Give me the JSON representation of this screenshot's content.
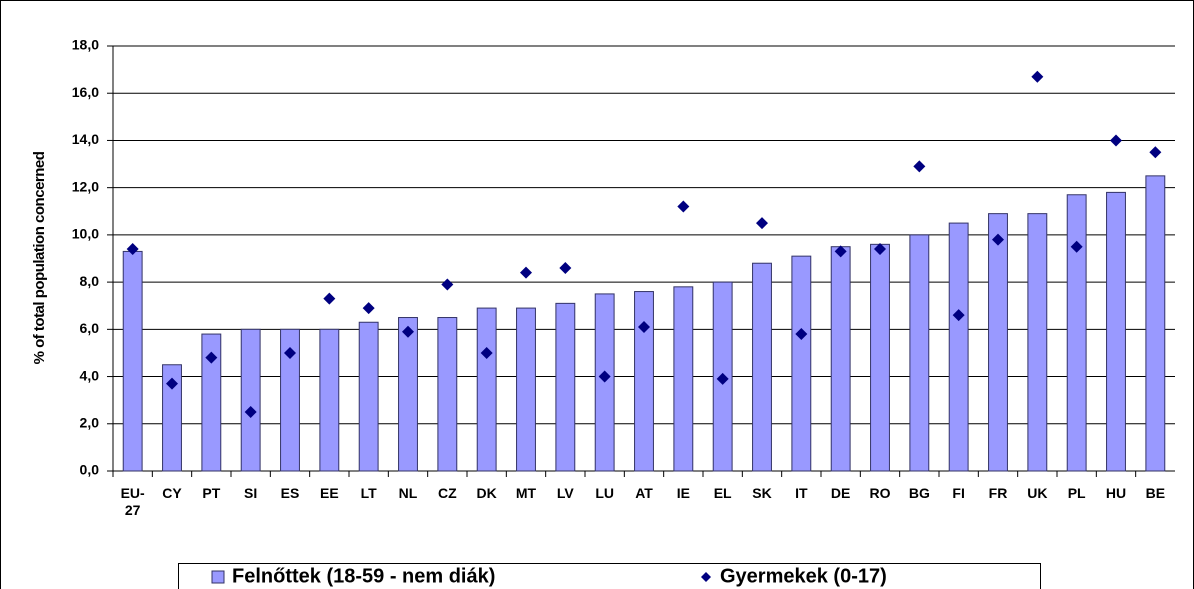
{
  "chart_data": {
    "type": "bar",
    "ylabel": "% of total population concerned",
    "categories": [
      "EU-27",
      "CY",
      "PT",
      "SI",
      "ES",
      "EE",
      "LT",
      "NL",
      "CZ",
      "DK",
      "MT",
      "LV",
      "LU",
      "AT",
      "IE",
      "EL",
      "SK",
      "IT",
      "DE",
      "RO",
      "BG",
      "FI",
      "FR",
      "UK",
      "PL",
      "HU",
      "BE"
    ],
    "series": [
      {
        "name": "Felnőttek (18-59 - nem diák)",
        "color": "#9999ff",
        "marker": "bar",
        "values": [
          9.3,
          4.5,
          5.8,
          6.0,
          6.0,
          6.0,
          6.3,
          6.5,
          6.5,
          6.9,
          6.9,
          7.1,
          7.5,
          7.6,
          7.8,
          8.0,
          8.8,
          9.1,
          9.5,
          9.6,
          10.0,
          10.5,
          10.9,
          10.9,
          11.7,
          11.8,
          12.5
        ]
      },
      {
        "name": "Gyermekek (0-17)",
        "color": "#000080",
        "marker": "diamond",
        "values": [
          9.4,
          3.7,
          4.8,
          2.5,
          5.0,
          7.3,
          6.9,
          5.9,
          7.9,
          5.0,
          8.4,
          8.6,
          4.0,
          6.1,
          11.2,
          3.9,
          10.5,
          5.8,
          9.3,
          9.4,
          12.9,
          6.6,
          9.8,
          16.7,
          9.5,
          14.0,
          13.5
        ]
      }
    ],
    "ylim": [
      0,
      18
    ],
    "yticks": [
      {
        "value": 0,
        "label": "0,0"
      },
      {
        "value": 2,
        "label": "2,0"
      },
      {
        "value": 4,
        "label": "4,0"
      },
      {
        "value": 6,
        "label": "6,0"
      },
      {
        "value": 8,
        "label": "8,0"
      },
      {
        "value": 10,
        "label": "10,0"
      },
      {
        "value": 12,
        "label": "12,0"
      },
      {
        "value": 14,
        "label": "14,0"
      },
      {
        "value": 16,
        "label": "16,0"
      },
      {
        "value": 18,
        "label": "18,0"
      }
    ],
    "grid": true,
    "legend": "bottom"
  }
}
